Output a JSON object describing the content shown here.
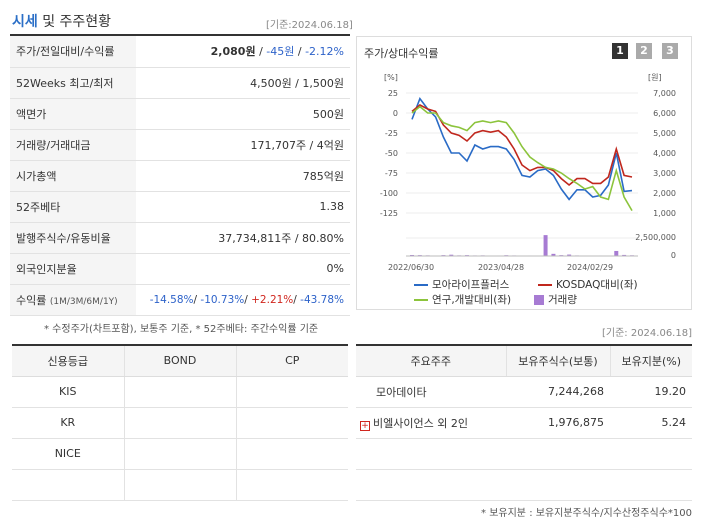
{
  "header": {
    "title_hl": "시세",
    "title_rest": " 및 주주현황",
    "basis": "[기준:2024.06.18]"
  },
  "info": {
    "rows": [
      {
        "label": "주가/전일대비/수익률"
      },
      {
        "label": "52Weeks 최고/최저",
        "value": "4,500원 / 1,500원"
      },
      {
        "label": "액면가",
        "value": "500원"
      },
      {
        "label": "거래량/거래대금",
        "value": "171,707주 / 4억원"
      },
      {
        "label": "시가총액",
        "value": "785억원"
      },
      {
        "label": "52주베타",
        "value": "1.38"
      },
      {
        "label": "발행주식수/유동비율",
        "value": "37,734,811주 / 80.80%"
      },
      {
        "label": "외국인지분율",
        "value": "0%"
      }
    ],
    "price": "2,080원",
    "change": "-45원",
    "rate": "-2.12%",
    "sep": " / ",
    "returns_label": "수익률",
    "returns_period": "(1M/3M/6M/1Y)",
    "r1": "-14.58%",
    "r2": "-10.73%",
    "r3": "+2.21%",
    "r4": "-43.78%"
  },
  "note1": "* 수정주가(차트포함), 보통주 기준, * 52주베타: 주간수익률 기준",
  "basis2": "[기준: 2024.06.18]",
  "chart": {
    "title": "주가/상대수익률",
    "pages": [
      "1",
      "2",
      "3"
    ],
    "left_unit": "[%]",
    "right_unit": "[원]",
    "left_ticks": [
      "25",
      "0",
      "-25",
      "-50",
      "-75",
      "-100",
      "-125"
    ],
    "right_ticks": [
      "7,000",
      "6,000",
      "5,000",
      "4,000",
      "3,000",
      "2,000",
      "1,000"
    ],
    "vol_tick": "2,500,000",
    "vol_zero": "0",
    "x_ticks": [
      "2022/06/30",
      "2023/04/28",
      "2024/02/29"
    ],
    "legend": [
      {
        "name": "모아라이프플러스",
        "color": "#2a6bc6"
      },
      {
        "name": "KOSDAQ대비(좌)",
        "color": "#c0271d"
      },
      {
        "name": "연구,개발대비(좌)",
        "color": "#8cc43c"
      },
      {
        "name": "거래량",
        "color": "#a77bd3"
      }
    ]
  },
  "chart_data": {
    "type": "line",
    "x_labels": [
      "2022/06/30",
      "2023/04/28",
      "2024/02/29"
    ],
    "y_left_range": [
      -125,
      25
    ],
    "y_right_range": [
      1000,
      7000
    ],
    "series": [
      {
        "name": "모아라이프플러스",
        "color": "#2a6bc6",
        "values": [
          -8,
          18,
          5,
          -5,
          -30,
          -50,
          -50,
          -60,
          -40,
          -45,
          -42,
          -42,
          -45,
          -58,
          -78,
          -80,
          -72,
          -70,
          -78,
          -95,
          -108,
          -96,
          -96,
          -105,
          -103,
          -90,
          -50,
          -98,
          -97
        ]
      },
      {
        "name": "KOSDAQ대비(좌)",
        "color": "#c0271d",
        "values": [
          2,
          10,
          5,
          2,
          -15,
          -25,
          -28,
          -35,
          -25,
          -22,
          -24,
          -22,
          -30,
          -45,
          -65,
          -72,
          -68,
          -68,
          -72,
          -82,
          -90,
          -82,
          -82,
          -88,
          -88,
          -80,
          -45,
          -78,
          -80
        ]
      },
      {
        "name": "연구,개발대비(좌)",
        "color": "#8cc43c",
        "values": [
          0,
          8,
          0,
          0,
          -12,
          -16,
          -18,
          -22,
          -12,
          -10,
          -12,
          -10,
          -12,
          -25,
          -42,
          -55,
          -62,
          -68,
          -70,
          -75,
          -82,
          -88,
          -95,
          -92,
          -105,
          -108,
          -72,
          -105,
          -122
        ]
      },
      {
        "name": "거래량",
        "color": "#a77bd3",
        "values": [
          140000,
          120000,
          90000,
          60000,
          120000,
          180000,
          90000,
          120000,
          80000,
          90000,
          60000,
          70000,
          110000,
          80000,
          60000,
          70000,
          60000,
          2900000,
          300000,
          120000,
          200000,
          80000,
          60000,
          60000,
          70000,
          60000,
          700000,
          150000,
          100000
        ]
      }
    ]
  },
  "credit": {
    "headers": [
      "신용등급",
      "BOND",
      "CP"
    ],
    "rows": [
      {
        "agency": "KIS",
        "bond": "",
        "cp": ""
      },
      {
        "agency": "KR",
        "bond": "",
        "cp": ""
      },
      {
        "agency": "NICE",
        "bond": "",
        "cp": ""
      },
      {
        "agency": "",
        "bond": "",
        "cp": ""
      }
    ]
  },
  "holders": {
    "headers": [
      "주요주주",
      "보유주식수(보통)",
      "보유지분(%)"
    ],
    "rows": [
      {
        "name": "모아데이타",
        "shares": "7,244,268",
        "pct": "19.20"
      },
      {
        "name": "비엘사이언스 외 2인",
        "shares": "1,976,875",
        "pct": "5.24"
      }
    ]
  },
  "note2": "* 보유지분 : 보유지분주식수/지수산정주식수*100"
}
